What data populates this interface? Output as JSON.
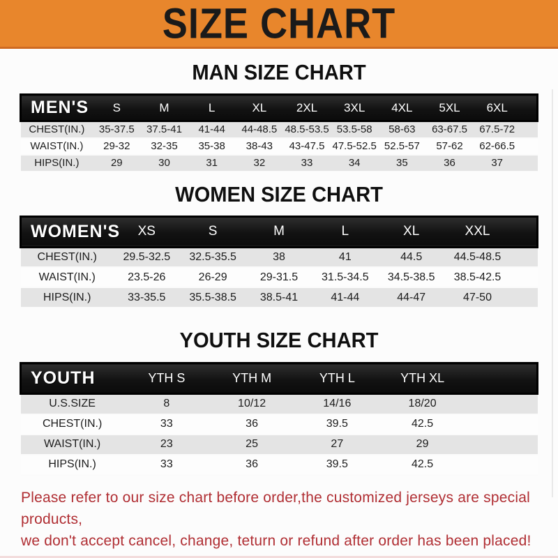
{
  "banner": {
    "title": "SIZE CHART",
    "bg_color": "#e8862c",
    "text_color": "#1a1a1a"
  },
  "chart_data": [
    {
      "type": "table",
      "title": "MAN SIZE CHART",
      "header_label": "MEN'S",
      "columns": [
        "S",
        "M",
        "L",
        "XL",
        "2XL",
        "3XL",
        "4XL",
        "5XL",
        "6XL"
      ],
      "rows": [
        {
          "label": "CHEST(IN.)",
          "values": [
            "35-37.5",
            "37.5-41",
            "41-44",
            "44-48.5",
            "48.5-53.5",
            "53.5-58",
            "58-63",
            "63-67.5",
            "67.5-72"
          ]
        },
        {
          "label": "WAIST(IN.)",
          "values": [
            "29-32",
            "32-35",
            "35-38",
            "38-43",
            "43-47.5",
            "47.5-52.5",
            "52.5-57",
            "57-62",
            "62-66.5"
          ]
        },
        {
          "label": "HIPS(IN.)",
          "values": [
            "29",
            "30",
            "31",
            "32",
            "33",
            "34",
            "35",
            "36",
            "37"
          ]
        }
      ]
    },
    {
      "type": "table",
      "title": "WOMEN SIZE CHART",
      "header_label": "WOMEN'S",
      "columns": [
        "XS",
        "S",
        "M",
        "L",
        "XL",
        "XXL"
      ],
      "rows": [
        {
          "label": "CHEST(IN.)",
          "values": [
            "29.5-32.5",
            "32.5-35.5",
            "38",
            "41",
            "44.5",
            "44.5-48.5"
          ]
        },
        {
          "label": "WAIST(IN.)",
          "values": [
            "23.5-26",
            "26-29",
            "29-31.5",
            "31.5-34.5",
            "34.5-38.5",
            "38.5-42.5"
          ]
        },
        {
          "label": "HIPS(IN.)",
          "values": [
            "33-35.5",
            "35.5-38.5",
            "38.5-41",
            "41-44",
            "44-47",
            "47-50"
          ]
        }
      ]
    },
    {
      "type": "table",
      "title": "YOUTH SIZE CHART",
      "header_label": "YOUTH",
      "columns": [
        "YTH S",
        "YTH M",
        "YTH L",
        "YTH XL"
      ],
      "rows": [
        {
          "label": "U.S.SIZE",
          "values": [
            "8",
            "10/12",
            "14/16",
            "18/20"
          ]
        },
        {
          "label": "CHEST(IN.)",
          "values": [
            "33",
            "36",
            "39.5",
            "42.5"
          ]
        },
        {
          "label": "WAIST(IN.)",
          "values": [
            "23",
            "25",
            "27",
            "29"
          ]
        },
        {
          "label": "HIPS(IN.)",
          "values": [
            "33",
            "36",
            "39.5",
            "42.5"
          ]
        }
      ]
    }
  ],
  "footer": {
    "line1": "Please refer to our size chart before order,the customized jerseys are special products,",
    "line2": "we don't accept cancel, change, teturn or refund after order has been placed!",
    "text_color": "#b02e33"
  }
}
